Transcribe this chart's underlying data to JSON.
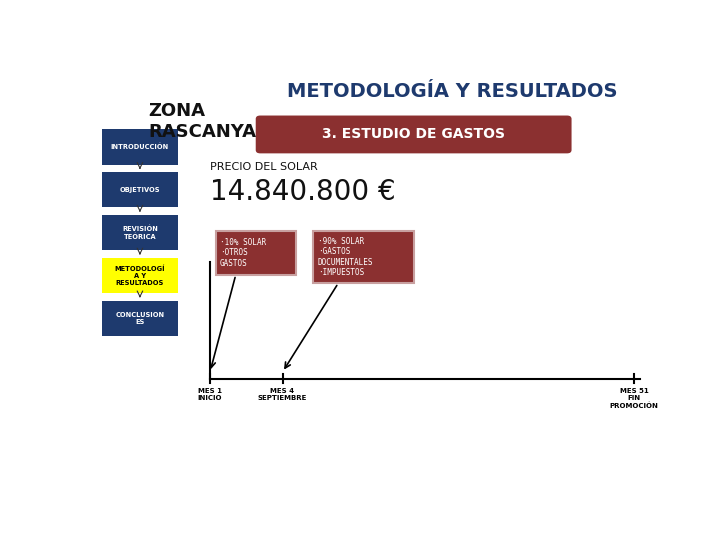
{
  "title": "METODOLOGÍA Y RESULTADOS",
  "subtitle": "3. ESTUDIO DE GASTOS",
  "zona_title": "ZONA\nRASCANYA",
  "precio_label": "PRECIO DEL SOLAR",
  "precio_value": "14.840.800 €",
  "nav_items": [
    "INTRODUCCIÓN",
    "OBJETIVOS",
    "REVISIÓN\nTEÓRICA",
    "METODOLOGÍ\nA Y\nRESULTADOS",
    "CONCLUSION\nES"
  ],
  "nav_active_index": 3,
  "nav_color": "#1e3a6e",
  "nav_active_color": "#ffff00",
  "nav_text_color": "#ffffff",
  "nav_active_text_color": "#000000",
  "subtitle_bg": "#8b3030",
  "title_color": "#1e3a6e",
  "bg_color": "#ffffff",
  "box1_text": "·10% SOLAR\n·OTROS\nGASTOS",
  "box2_text": "·90% SOLAR\n·GASTOS\nDOCUMENTALES\n·IMPUESTOS",
  "box_color": "#8b3030",
  "box_border_color": "#c8a0a0",
  "tick1_label": "MES 1\nINICIO",
  "tick2_label": "MES 4\nSEPTIEMBRE",
  "tick3_label": "MES 51\nFIN\nPROMOCIÓN"
}
